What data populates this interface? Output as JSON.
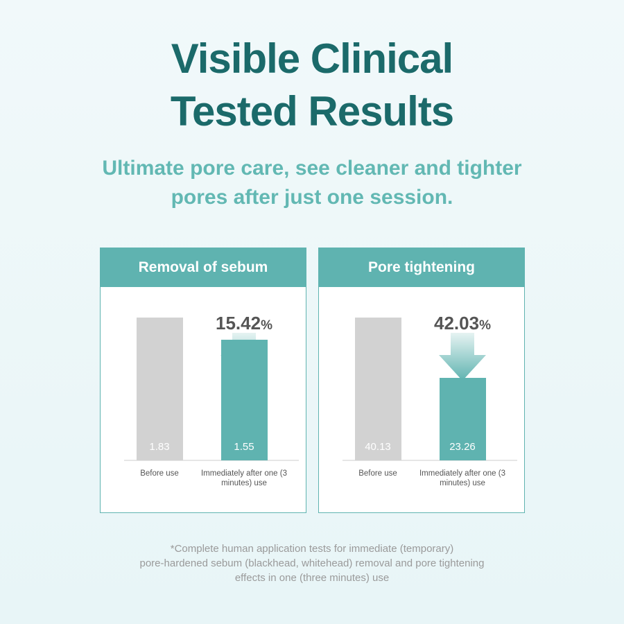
{
  "header": {
    "title": [
      "Visible Clinical",
      "Tested Results"
    ],
    "subtitle": [
      "Ultimate pore care, see cleaner and tighter",
      "pores after just one session."
    ]
  },
  "chart_data": [
    {
      "type": "bar",
      "title": "Removal of sebum",
      "categories": [
        "Before use",
        "Immediately after one (3 minutes) use"
      ],
      "values": [
        1.83,
        1.55
      ],
      "colors": [
        "#d2d2d2",
        "#5fb3b0"
      ],
      "annotation": {
        "value": "15.42",
        "unit": "%"
      }
    },
    {
      "type": "bar",
      "title": "Pore tightening",
      "categories": [
        "Before use",
        "Immediately after one (3 minutes) use"
      ],
      "values": [
        40.13,
        23.26
      ],
      "colors": [
        "#d2d2d2",
        "#5fb3b0"
      ],
      "annotation": {
        "value": "42.03",
        "unit": "%"
      }
    }
  ],
  "footnote": [
    "*Complete human application tests for immediate (temporary)",
    "pore-hardened sebum (blackhead, whitehead) removal and pore tightening",
    "effects in one (three minutes) use"
  ]
}
